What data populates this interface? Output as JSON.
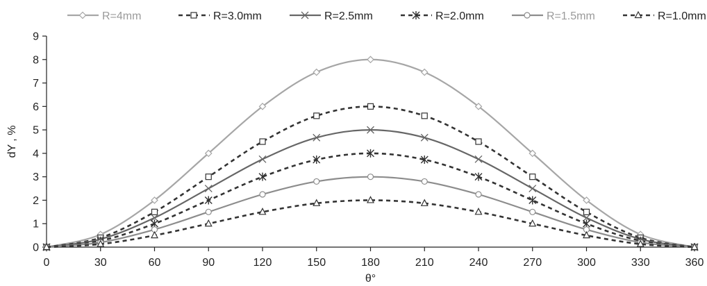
{
  "chart_data": {
    "type": "line",
    "xlabel": "θ°",
    "ylabel": "dY , %",
    "xlim": [
      0,
      360
    ],
    "ylim": [
      0,
      9
    ],
    "x": [
      0,
      30,
      60,
      90,
      120,
      150,
      180,
      210,
      240,
      270,
      300,
      330,
      360
    ],
    "x_ticks": [
      0,
      30,
      60,
      90,
      120,
      150,
      180,
      210,
      240,
      270,
      300,
      330,
      360
    ],
    "y_ticks": [
      0,
      1,
      2,
      3,
      4,
      5,
      6,
      7,
      8,
      9
    ],
    "grid": "none",
    "legend_position": "top",
    "series": [
      {
        "name": "R=4mm",
        "values": [
          0,
          0.54,
          2.0,
          4.0,
          6.0,
          7.46,
          8.0,
          7.46,
          6.0,
          4.0,
          2.0,
          0.54,
          0
        ],
        "color": "#a6a6a6",
        "dash": "solid",
        "marker": "diamond"
      },
      {
        "name": "R=3.0mm",
        "values": [
          0,
          0.4,
          1.5,
          3.0,
          4.5,
          5.6,
          6.0,
          5.6,
          4.5,
          3.0,
          1.5,
          0.4,
          0
        ],
        "color": "#333333",
        "dash": "dashed",
        "marker": "square"
      },
      {
        "name": "R=2.5mm",
        "values": [
          0,
          0.34,
          1.25,
          2.5,
          3.75,
          4.67,
          5.0,
          4.67,
          3.75,
          2.5,
          1.25,
          0.34,
          0
        ],
        "color": "#666666",
        "dash": "solid",
        "marker": "x"
      },
      {
        "name": "R=2.0mm",
        "values": [
          0,
          0.27,
          1.0,
          2.0,
          3.0,
          3.73,
          4.0,
          3.73,
          3.0,
          2.0,
          1.0,
          0.27,
          0
        ],
        "color": "#333333",
        "dash": "dashed",
        "marker": "asterisk"
      },
      {
        "name": "R=1.5mm",
        "values": [
          0,
          0.2,
          0.75,
          1.5,
          2.25,
          2.8,
          3.0,
          2.8,
          2.25,
          1.5,
          0.75,
          0.2,
          0
        ],
        "color": "#8c8c8c",
        "dash": "solid",
        "marker": "circle"
      },
      {
        "name": "R=1.0mm",
        "values": [
          0,
          0.13,
          0.5,
          1.0,
          1.5,
          1.87,
          2.0,
          1.87,
          1.5,
          1.0,
          0.5,
          0.13,
          0
        ],
        "color": "#333333",
        "dash": "dashed",
        "marker": "triangle"
      }
    ]
  }
}
